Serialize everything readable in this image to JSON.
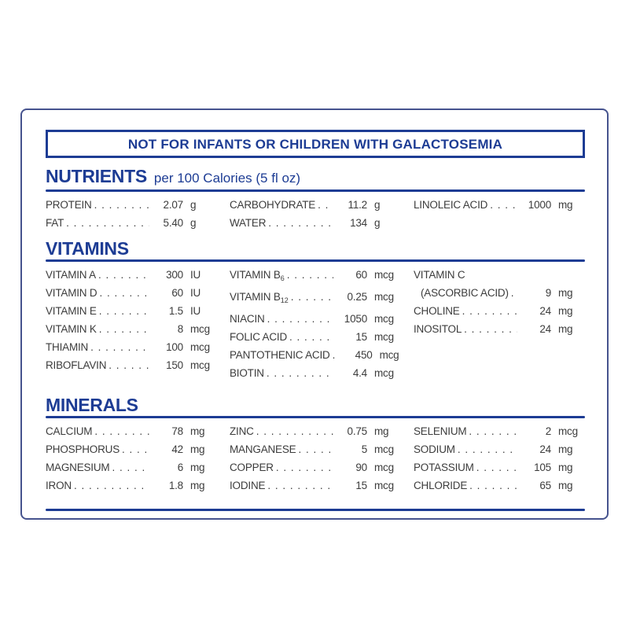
{
  "colors": {
    "brand_blue": "#1d3c94",
    "text_gray": "#3c3c3c",
    "card_border": "#46538e",
    "background": "#ffffff"
  },
  "banner": {
    "text": "NOT FOR INFANTS OR CHILDREN WITH GALACTOSEMIA"
  },
  "nutrients": {
    "title": "NUTRIENTS",
    "subtitle": "per 100 Calories (5 fl oz)",
    "cols": [
      [
        {
          "label": "PROTEIN",
          "value": "2.07",
          "unit": "g"
        },
        {
          "label": "FAT",
          "value": "5.40",
          "unit": "g"
        }
      ],
      [
        {
          "label": "CARBOHYDRATE",
          "value": "11.2",
          "unit": "g"
        },
        {
          "label": "WATER",
          "value": "134",
          "unit": "g"
        }
      ],
      [
        {
          "label": "LINOLEIC ACID",
          "value": "1000",
          "unit": "mg"
        }
      ]
    ]
  },
  "vitamins": {
    "title": "VITAMINS",
    "cols": [
      [
        {
          "label": "VITAMIN A",
          "value": "300",
          "unit": "IU"
        },
        {
          "label": "VITAMIN D",
          "value": "60",
          "unit": "IU"
        },
        {
          "label": "VITAMIN E",
          "value": "1.5",
          "unit": "IU"
        },
        {
          "label": "VITAMIN K",
          "value": "8",
          "unit": "mcg"
        },
        {
          "label": "THIAMIN",
          "value": "100",
          "unit": "mcg"
        },
        {
          "label": "RIBOFLAVIN",
          "value": "150",
          "unit": "mcg"
        }
      ],
      [
        {
          "label": "VITAMIN B",
          "sub": "6",
          "value": "60",
          "unit": "mcg"
        },
        {
          "label": "VITAMIN B",
          "sub": "12",
          "value": "0.25",
          "unit": "mcg"
        },
        {
          "label": "NIACIN",
          "value": "1050",
          "unit": "mcg"
        },
        {
          "label": "FOLIC ACID",
          "value": "15",
          "unit": "mcg"
        },
        {
          "label": "PANTOTHENIC ACID",
          "value": "450",
          "unit": "mcg"
        },
        {
          "label": "BIOTIN",
          "value": "4.4",
          "unit": "mcg"
        }
      ],
      [
        {
          "label": "VITAMIN C"
        },
        {
          "label": "(ASCORBIC ACID)",
          "value": "9",
          "unit": "mg"
        },
        {
          "label": "CHOLINE",
          "value": "24",
          "unit": "mg"
        },
        {
          "label": "INOSITOL",
          "value": "24",
          "unit": "mg"
        }
      ]
    ]
  },
  "minerals": {
    "title": "MINERALS",
    "cols": [
      [
        {
          "label": "CALCIUM",
          "value": "78",
          "unit": "mg"
        },
        {
          "label": "PHOSPHORUS",
          "value": "42",
          "unit": "mg"
        },
        {
          "label": "MAGNESIUM",
          "value": "6",
          "unit": "mg"
        },
        {
          "label": "IRON",
          "value": "1.8",
          "unit": "mg"
        }
      ],
      [
        {
          "label": "ZINC",
          "value": "0.75",
          "unit": "mg"
        },
        {
          "label": "MANGANESE",
          "value": "5",
          "unit": "mcg"
        },
        {
          "label": "COPPER",
          "value": "90",
          "unit": "mcg"
        },
        {
          "label": "IODINE",
          "value": "15",
          "unit": "mcg"
        }
      ],
      [
        {
          "label": "SELENIUM",
          "value": "2",
          "unit": "mcg"
        },
        {
          "label": "SODIUM",
          "value": "24",
          "unit": "mg"
        },
        {
          "label": "POTASSIUM",
          "value": "105",
          "unit": "mg"
        },
        {
          "label": "CHLORIDE",
          "value": "65",
          "unit": "mg"
        }
      ]
    ]
  }
}
